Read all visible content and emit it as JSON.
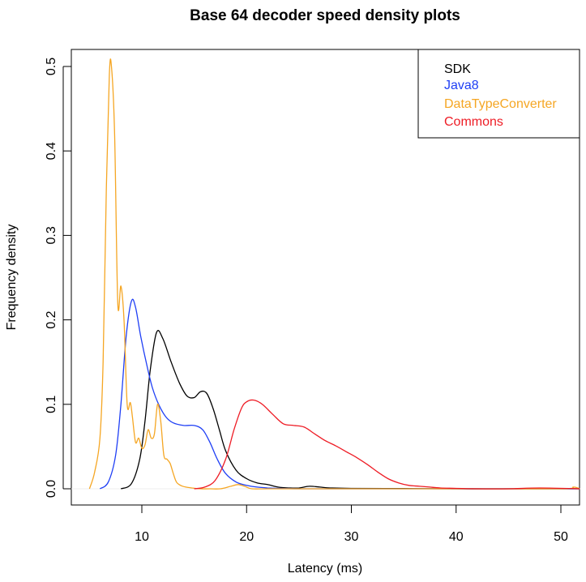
{
  "chart_data": {
    "type": "line",
    "title": "Base 64 decoder speed density plots",
    "xlabel": "Latency (ms)",
    "ylabel": "Frequency density",
    "xlim": [
      3.3,
      51.8
    ],
    "ylim": [
      -0.02,
      0.52
    ],
    "xticks": [
      10,
      20,
      30,
      40,
      50
    ],
    "yticks": [
      0.0,
      0.1,
      0.2,
      0.3,
      0.4,
      0.5
    ],
    "xtick_labels": [
      "10",
      "20",
      "30",
      "40",
      "50"
    ],
    "ytick_labels": [
      "0.0",
      "0.1",
      "0.2",
      "0.3",
      "0.4",
      "0.5"
    ],
    "grid": false,
    "legend_position": "top-right",
    "series": [
      {
        "name": "SDK",
        "color": "#000000",
        "x": [
          8.0,
          9.0,
          9.8,
          10.3,
          10.8,
          11.4,
          12.0,
          12.8,
          13.6,
          14.3,
          15.0,
          15.6,
          16.2,
          16.8,
          17.4,
          18.0,
          19.0,
          20.0,
          21.0,
          22.0,
          23.0,
          24.0,
          25.0,
          26.0,
          27.0,
          28.0,
          30.0,
          35.0,
          40.0,
          45.0,
          51.8
        ],
        "y": [
          0.0,
          0.006,
          0.035,
          0.08,
          0.14,
          0.185,
          0.178,
          0.15,
          0.125,
          0.11,
          0.108,
          0.115,
          0.113,
          0.095,
          0.07,
          0.045,
          0.022,
          0.012,
          0.007,
          0.005,
          0.002,
          0.001,
          0.001,
          0.003,
          0.002,
          0.001,
          0.0005,
          0.0003,
          0.0,
          0.0,
          0.0
        ]
      },
      {
        "name": "Java8",
        "color": "#1f3ff5",
        "x": [
          6.0,
          6.8,
          7.5,
          8.0,
          8.5,
          9.0,
          9.4,
          9.9,
          10.5,
          11.0,
          11.6,
          12.3,
          13.0,
          14.0,
          15.0,
          15.8,
          16.5,
          17.2,
          18.0,
          19.0,
          20.0,
          21.0,
          22.0,
          23.0,
          25.0,
          30.0,
          40.0,
          51.8
        ],
        "y": [
          0.0,
          0.008,
          0.04,
          0.1,
          0.18,
          0.222,
          0.215,
          0.18,
          0.145,
          0.12,
          0.1,
          0.085,
          0.078,
          0.075,
          0.075,
          0.07,
          0.055,
          0.035,
          0.018,
          0.008,
          0.004,
          0.002,
          0.001,
          0.0005,
          0.0,
          0.0,
          0.0,
          0.0
        ]
      },
      {
        "name": "DataTypeConverter",
        "color": "#f5a623",
        "x": [
          5.0,
          5.5,
          6.0,
          6.3,
          6.6,
          6.9,
          7.1,
          7.4,
          7.7,
          8.0,
          8.3,
          8.6,
          8.9,
          9.1,
          9.4,
          9.7,
          10.0,
          10.3,
          10.6,
          10.9,
          11.2,
          11.5,
          11.8,
          12.1,
          12.4,
          12.7,
          13.0,
          13.3,
          13.7,
          14.2,
          14.8,
          15.5,
          16.5,
          17.5,
          18.5,
          19.2,
          19.8,
          20.5,
          22.0,
          25.0,
          30.0,
          40.0,
          50.0,
          51.2,
          51.8
        ],
        "y": [
          0.0,
          0.02,
          0.06,
          0.15,
          0.35,
          0.49,
          0.5,
          0.42,
          0.22,
          0.24,
          0.2,
          0.1,
          0.102,
          0.085,
          0.055,
          0.06,
          0.048,
          0.052,
          0.07,
          0.06,
          0.065,
          0.1,
          0.08,
          0.04,
          0.035,
          0.03,
          0.018,
          0.008,
          0.004,
          0.002,
          0.001,
          0.0,
          0.0,
          0.0,
          0.003,
          0.005,
          0.003,
          0.0,
          0.0,
          0.0,
          0.0,
          0.0,
          0.0,
          0.002,
          0.0
        ]
      },
      {
        "name": "Commons",
        "color": "#ee1c25",
        "x": [
          15.0,
          16.0,
          17.0,
          18.0,
          18.8,
          19.5,
          20.0,
          20.7,
          21.5,
          22.5,
          23.5,
          24.5,
          25.5,
          26.5,
          27.5,
          28.5,
          29.5,
          30.5,
          31.5,
          32.5,
          33.5,
          34.5,
          35.5,
          36.5,
          37.5,
          38.5,
          40.0,
          42.0,
          45.0,
          48.0,
          51.8
        ],
        "y": [
          0.0,
          0.002,
          0.01,
          0.035,
          0.07,
          0.095,
          0.103,
          0.105,
          0.1,
          0.088,
          0.077,
          0.075,
          0.073,
          0.065,
          0.057,
          0.051,
          0.044,
          0.037,
          0.029,
          0.02,
          0.012,
          0.007,
          0.004,
          0.003,
          0.002,
          0.001,
          0.0005,
          0.0,
          0.0,
          0.001,
          0.0
        ]
      }
    ]
  },
  "legend": {
    "items": [
      {
        "label": "SDK",
        "color": "#000000"
      },
      {
        "label": "Java8",
        "color": "#1f3ff5"
      },
      {
        "label": "DataTypeConverter",
        "color": "#f5a623"
      },
      {
        "label": "Commons",
        "color": "#ee1c25"
      }
    ]
  }
}
